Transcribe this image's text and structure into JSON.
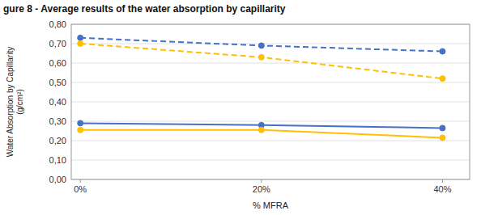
{
  "chart_data": {
    "type": "line",
    "title": "gure 8 - Average results of the water absorption by capillarity",
    "xlabel": "% MFRA",
    "ylabel": "Water Absorption by Capillarity\n(g/cm²)",
    "x": [
      0,
      20,
      40
    ],
    "xlim": [
      -1,
      43
    ],
    "xticks": [
      {
        "value": 0,
        "label": "0%"
      },
      {
        "value": 20,
        "label": "20%"
      },
      {
        "value": 40,
        "label": "40%"
      }
    ],
    "ylim": [
      0.0,
      0.8
    ],
    "yticks": [
      {
        "value": 0.0,
        "label": "0,00"
      },
      {
        "value": 0.1,
        "label": "0,10"
      },
      {
        "value": 0.2,
        "label": "0,20"
      },
      {
        "value": 0.3,
        "label": "0,30"
      },
      {
        "value": 0.4,
        "label": "0,40"
      },
      {
        "value": 0.5,
        "label": "0,50"
      },
      {
        "value": 0.6,
        "label": "0,60"
      },
      {
        "value": 0.7,
        "label": "0,70"
      },
      {
        "value": 0.8,
        "label": "0,80"
      }
    ],
    "grid": true,
    "series": [
      {
        "values": [
          0.73,
          0.69,
          0.66
        ],
        "color": "#4472C4",
        "line_style": "dashed",
        "marker": "circle"
      },
      {
        "values": [
          0.7,
          0.63,
          0.52
        ],
        "color": "#FFC000",
        "line_style": "dashed",
        "marker": "circle"
      },
      {
        "values": [
          0.29,
          0.28,
          0.265
        ],
        "color": "#4472C4",
        "line_style": "solid",
        "marker": "circle"
      },
      {
        "values": [
          0.255,
          0.255,
          0.215
        ],
        "color": "#FFC000",
        "line_style": "solid",
        "marker": "circle"
      }
    ]
  }
}
